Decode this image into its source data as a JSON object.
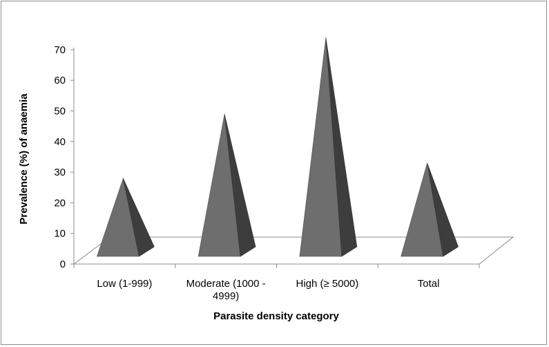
{
  "chart_data": {
    "type": "bar",
    "bar_shape": "pyramid-3d",
    "categories": [
      "Low (1-999)",
      "Moderate (1000 - 4999)",
      "High (≥ 5000)",
      "Total"
    ],
    "category_lines": [
      [
        "Low (1-999)"
      ],
      [
        "Moderate (1000 -",
        "4999)"
      ],
      [
        "High (≥ 5000)"
      ],
      [
        "Total"
      ]
    ],
    "values": [
      28,
      49,
      74,
      33
    ],
    "xlabel": "Parasite density category",
    "ylabel": "Prevalence (%) of anaemia",
    "ylim": [
      0,
      70
    ],
    "yticks": [
      0,
      10,
      20,
      30,
      40,
      50,
      60,
      70
    ],
    "grid": false,
    "colors": {
      "front_face": "#6e6e6e",
      "side_face": "#3d3d3d",
      "floor": "#ffffff",
      "axis": "#8c8c8c"
    }
  }
}
